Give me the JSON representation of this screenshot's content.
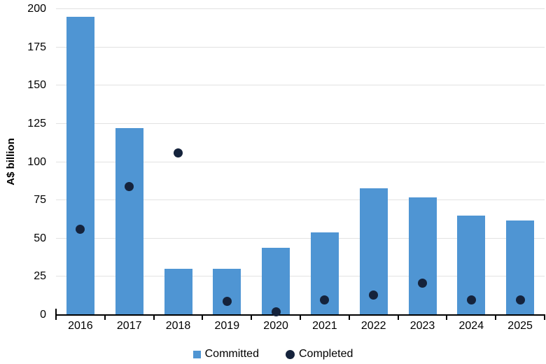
{
  "chart_data": {
    "type": "bar",
    "categories": [
      "2016",
      "2017",
      "2018",
      "2019",
      "2020",
      "2021",
      "2022",
      "2023",
      "2024",
      "2025"
    ],
    "series": [
      {
        "name": "Committed",
        "type": "bar",
        "color": "#4f95d3",
        "values": [
          195,
          122,
          30,
          30,
          44,
          54,
          83,
          77,
          65,
          62
        ]
      },
      {
        "name": "Completed",
        "type": "scatter",
        "color": "#15233c",
        "values": [
          56,
          84,
          106,
          9,
          2,
          10,
          13,
          21,
          10,
          10
        ]
      }
    ],
    "ylabel": "A$ billion",
    "ylim": [
      0,
      200
    ],
    "yticks": [
      0,
      25,
      50,
      75,
      100,
      125,
      150,
      175,
      200
    ],
    "grid": true,
    "gridline_color": "#e2e2e2",
    "axis_color": "#000000",
    "legend_position": "bottom"
  }
}
